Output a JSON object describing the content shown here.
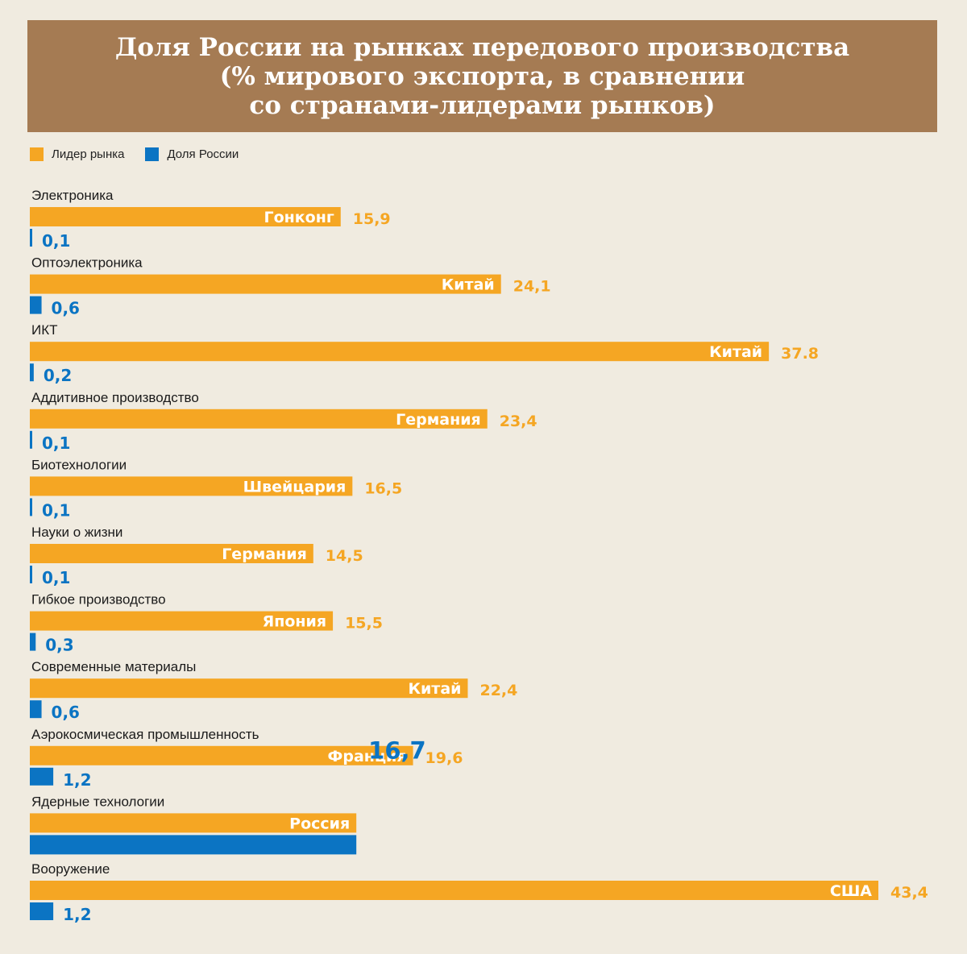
{
  "title_lines": [
    "Доля России на рынках передового производства",
    "(% мирового экспорта, в сравнении",
    "со странами-лидерами рынков)"
  ],
  "colors": {
    "leader": "#f5a623",
    "russia": "#0b74c3",
    "header_bg": "#a57b53",
    "background": "#f0ebe0"
  },
  "chart_data": {
    "type": "bar",
    "orientation": "horizontal",
    "categories": [
      "Электроника",
      "Оптоэлектроника",
      "ИКТ",
      "Аддитивное производство",
      "Биотехнологии",
      "Науки о жизни",
      "Гибкое производство",
      "Современные материалы",
      "Аэрокосмическая промышленность",
      "Ядерные технологии",
      "Вооружение"
    ],
    "series": [
      {
        "name": "Лидер рынка",
        "leaders": [
          "Гонконг",
          "Китай",
          "Китай",
          "Германия",
          "Швейцария",
          "Германия",
          "Япония",
          "Китай",
          "Франция",
          "Россия",
          "США"
        ],
        "values": [
          15.9,
          24.1,
          37.8,
          23.4,
          16.5,
          14.5,
          15.5,
          22.4,
          19.6,
          16.7,
          43.4
        ],
        "labels": [
          "15,9",
          "24,1",
          "37.8",
          "23,4",
          "16,5",
          "14,5",
          "15,5",
          "22,4",
          "19,6",
          "",
          "43,4"
        ]
      },
      {
        "name": "Доля России",
        "values": [
          0.1,
          0.6,
          0.2,
          0.1,
          0.1,
          0.1,
          0.3,
          0.6,
          1.2,
          16.7,
          1.2
        ],
        "labels": [
          "0,1",
          "0,6",
          "0,2",
          "0,1",
          "0,1",
          "0,1",
          "0,3",
          "0,6",
          "1,2",
          "16,7",
          "1,2"
        ]
      }
    ],
    "xlim": [
      0,
      43.4
    ],
    "legend_position": "top-left",
    "grid": false
  }
}
